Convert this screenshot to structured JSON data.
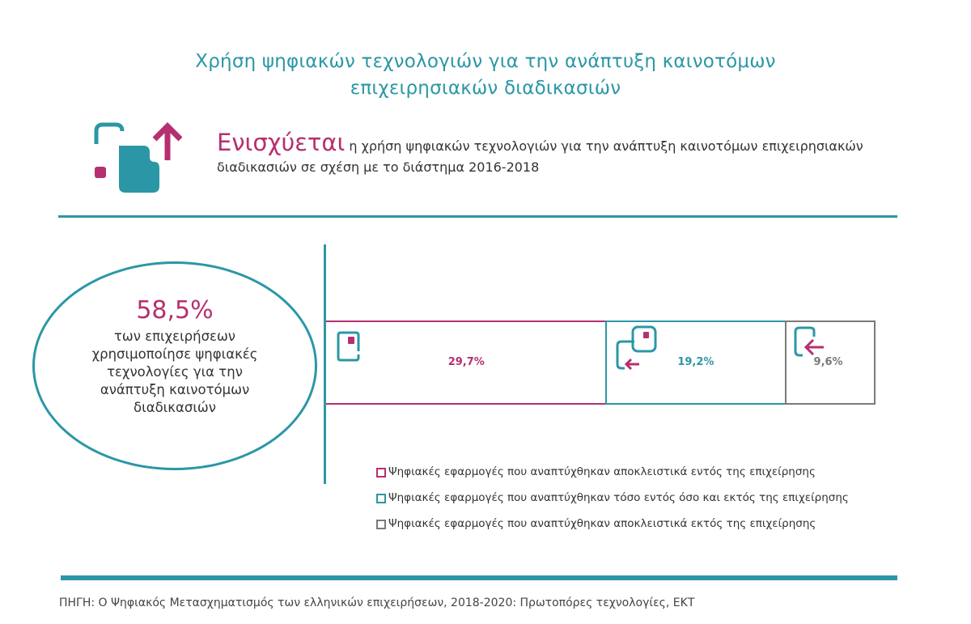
{
  "title": [
    "Χρήση ψηφιακών τεχνολογιών για την ανάπτυξη καινοτόμων",
    "επιχειρησιακών διαδικασιών"
  ],
  "headline": {
    "emphasis": "Ενισχύεται",
    "text": " η χρήση ψηφιακών τεχνολογιών για την ανάπτυξη καινοτόμων επιχειρησιακών διαδικασιών σε σχέση με το διάστημα 2016-2018"
  },
  "summary": {
    "value": "58,5%",
    "lines": [
      "των επιχειρήσεων",
      "χρησιμοποίησε ψηφιακές",
      "τεχνολογίες για την",
      "ανάπτυξη καινοτόμων",
      "διαδικασιών"
    ]
  },
  "colors": {
    "teal": "#2b97a6",
    "magenta": "#b5306f",
    "gray": "#7a7a7a"
  },
  "chart_data": {
    "type": "bar",
    "orientation": "horizontal-stacked",
    "series": [
      {
        "name": "Ψηφιακές εφαρμογές που αναπτύχθηκαν αποκλειστικά εντός της επιχείρησης",
        "value": 29.7,
        "label": "29,7%",
        "color": "#b5306f"
      },
      {
        "name": "Ψηφιακές εφαρμογές που αναπτύχθηκαν τόσο εντός όσο και εκτός της επιχείρησης",
        "value": 19.2,
        "label": "19,2%",
        "color": "#2b97a6"
      },
      {
        "name": "Ψηφιακές εφαρμογές που αναπτύχθηκαν αποκλειστικά εκτός της επιχείρησης",
        "value": 9.6,
        "label": "9,6%",
        "color": "#7a7a7a"
      }
    ],
    "legend_position": "bottom-right"
  },
  "source": "ΠΗΓΗ: Ο Ψηφιακός Μετασχηματισμός των ελληνικών επιχειρήσεων, 2018-2020: Πρωτοπόρες τεχνολογίες, ΕΚΤ"
}
